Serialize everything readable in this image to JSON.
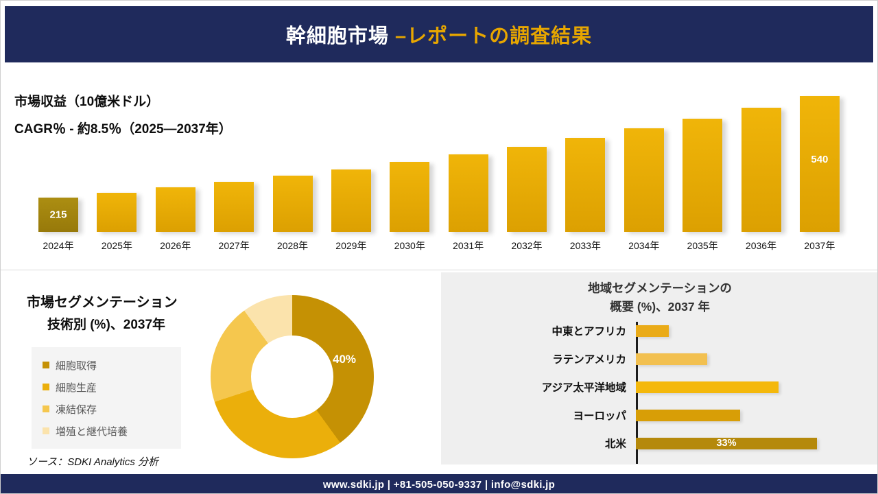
{
  "header": {
    "title_main": "幹細胞市場 ",
    "title_accent": "–レポートの調査結果"
  },
  "revenue": {
    "subtitle_line1": "市場収益（10億米ドル）",
    "subtitle_line2": "CAGR％ - 約8.5％（2025―2037年）"
  },
  "segmentation": {
    "title_line1": "市場セグメンテーション",
    "title_line2": "技術別 (%)、2037年",
    "donut_label": "40%",
    "source": "ソース：SDKI Analytics 分析"
  },
  "region": {
    "title_line1": "地域セグメンテーションの",
    "title_line2": "概要 (%)、2037 年"
  },
  "footer": {
    "contact": "www.sdki.jp | +81-505-050-9337 | info@sdki.jp"
  },
  "colors": {
    "navy": "#1F2A5C",
    "gold_accent": "#E7A600"
  },
  "chart_data": [
    {
      "type": "bar",
      "title": "市場収益（10億米ドル）",
      "subtitle": "CAGR％ - 約8.5％（2025―2037年）",
      "categories": [
        "2024年",
        "2025年",
        "2026年",
        "2027年",
        "2028年",
        "2029年",
        "2030年",
        "2031年",
        "2032年",
        "2033年",
        "2034年",
        "2035年",
        "2036年",
        "2037年"
      ],
      "values": [
        215,
        231,
        248,
        266,
        285,
        306,
        329,
        353,
        378,
        406,
        436,
        468,
        502,
        540
      ],
      "data_labels": {
        "2024年": "215",
        "2037年": "540"
      },
      "ylim": [
        0,
        560
      ],
      "bar_color": "#E2A504",
      "first_bar_color": "#A6890E"
    },
    {
      "type": "pie",
      "subtype": "donut",
      "title": "市場セグメンテーション 技術別 (%)、2037年",
      "labels": [
        "細胞取得",
        "細胞生産",
        "凍結保存",
        "増殖と継代培養"
      ],
      "values": [
        40,
        30,
        20,
        10
      ],
      "colors": [
        "#C59104",
        "#EBAF0B",
        "#F5C74E",
        "#FBE3AC"
      ],
      "data_labels": {
        "細胞取得": "40%"
      },
      "legend_position": "left"
    },
    {
      "type": "bar",
      "orientation": "horizontal",
      "title": "地域セグメンテーションの概要 (%)、2037 年",
      "categories": [
        "中東とアフリカ",
        "ラテンアメリカ",
        "アジア太平洋地域",
        "ヨーロッパ",
        "北米"
      ],
      "values": [
        6,
        13,
        26,
        19,
        33
      ],
      "colors": [
        "#EAAB18",
        "#F2C050",
        "#F4B80B",
        "#D89E06",
        "#B5890B"
      ],
      "data_labels": {
        "北米": "33%"
      },
      "xlim": [
        0,
        35
      ]
    }
  ]
}
